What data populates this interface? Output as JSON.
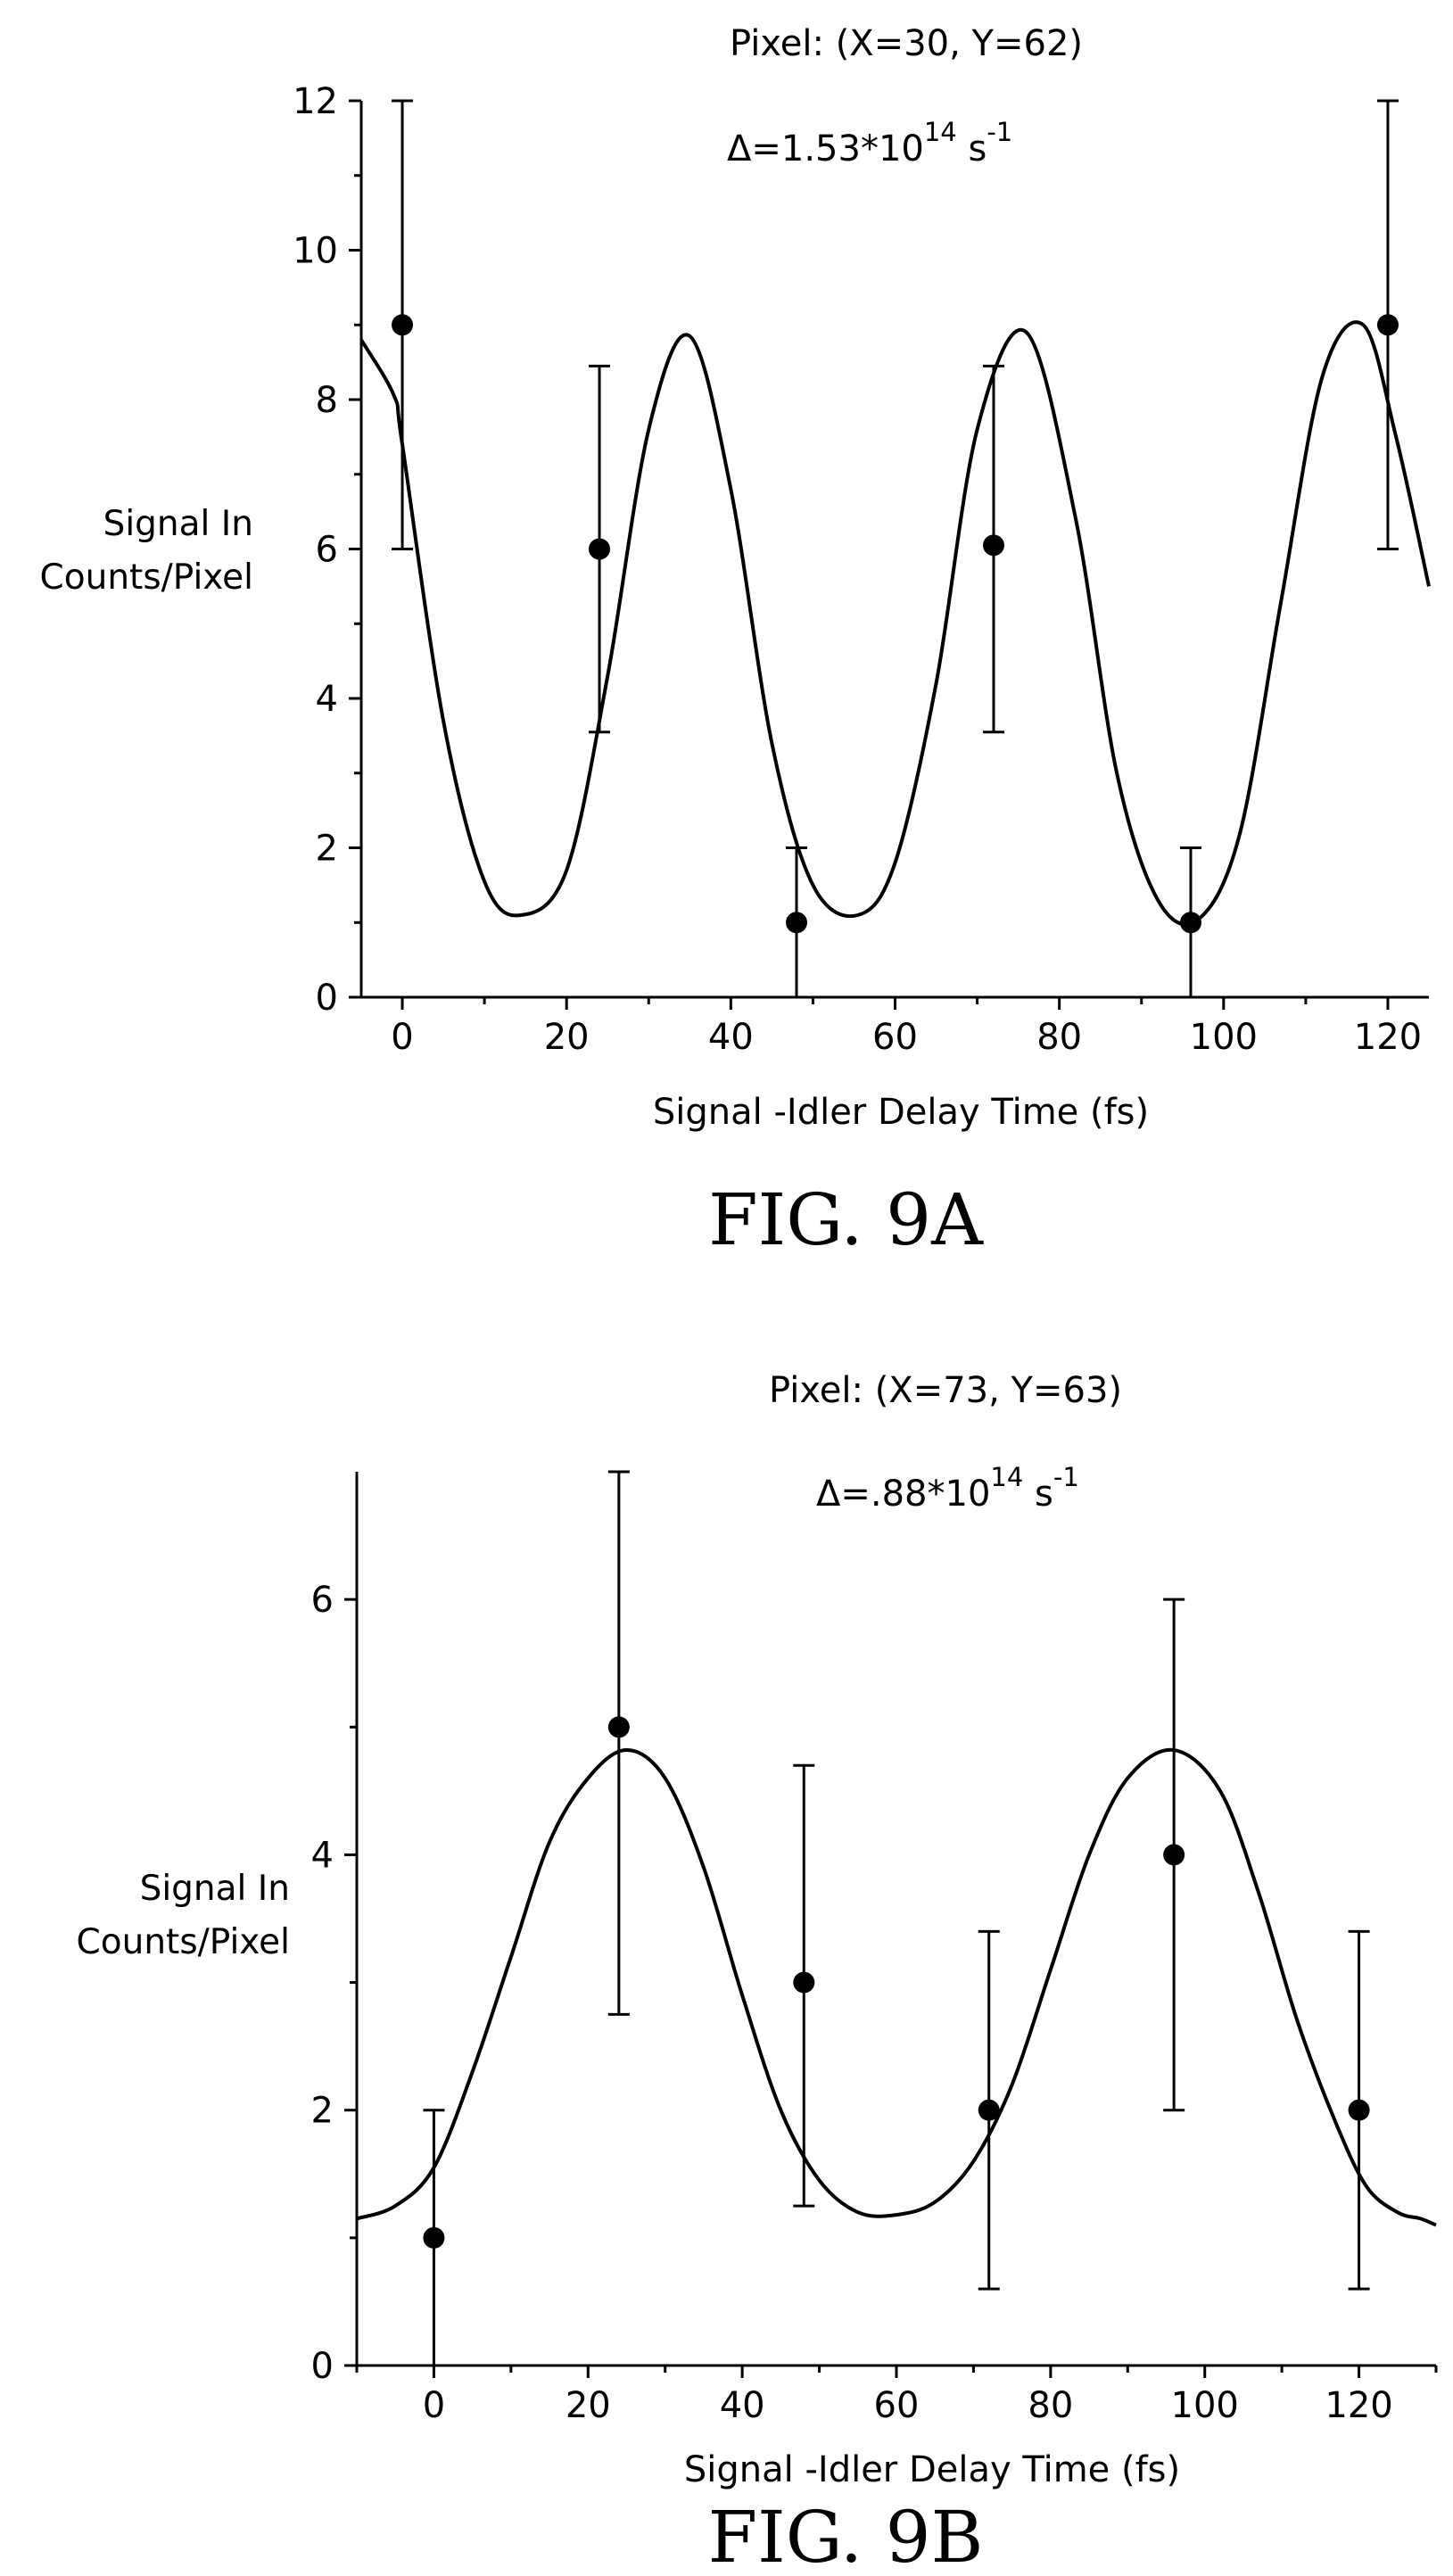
{
  "chart_data": [
    {
      "type": "scatter",
      "figure_label": "FIG. 9A",
      "annotations": {
        "pixel": "Pixel: (X=30, Y=62)",
        "delta_base": "Δ=1.53*10",
        "delta_exp": "14",
        "delta_unit": " s",
        "delta_unit_exp": "-1"
      },
      "xlabel": "Signal -Idler Delay Time (fs)",
      "ylabel": [
        "Signal In",
        "Counts/Pixel"
      ],
      "xlim": [
        -5,
        125
      ],
      "ylim": [
        0,
        12
      ],
      "xticks": [
        0,
        20,
        40,
        60,
        80,
        100,
        120
      ],
      "yticks": [
        0,
        2,
        4,
        6,
        8,
        10,
        12
      ],
      "points": [
        {
          "x": 0,
          "y": 9,
          "err_low": 6,
          "err_high": 12
        },
        {
          "x": 24,
          "y": 6,
          "err_low": 3.55,
          "err_high": 8.45
        },
        {
          "x": 48,
          "y": 1,
          "err_low": 0,
          "err_high": 2
        },
        {
          "x": 72,
          "y": 6.05,
          "err_low": 3.55,
          "err_high": 8.45
        },
        {
          "x": 96,
          "y": 1,
          "err_low": 0,
          "err_high": 2
        },
        {
          "x": 120,
          "y": 9,
          "err_low": 6,
          "err_high": 12
        }
      ],
      "fit": {
        "x": [
          -5,
          -1,
          0,
          5,
          10,
          14.5,
          20,
          25,
          30,
          35,
          40,
          45,
          50,
          55.5,
          60,
          65,
          70,
          76,
          82,
          87,
          92,
          97,
          102,
          107,
          112,
          117,
          121,
          125
        ],
        "y": [
          8.8,
          8.05,
          7.4,
          3.7,
          1.55,
          1.1,
          1.7,
          4.3,
          7.6,
          8.85,
          6.8,
          3.4,
          1.5,
          1.1,
          1.8,
          4.2,
          7.6,
          8.9,
          6.4,
          3.0,
          1.3,
          1.05,
          2.2,
          5.3,
          8.3,
          9.0,
          7.5,
          5.5
        ]
      }
    },
    {
      "type": "scatter",
      "figure_label": "FIG. 9B",
      "annotations": {
        "pixel": "Pixel: (X=73, Y=63)",
        "delta_base": "Δ=.88*10",
        "delta_exp": "14",
        "delta_unit": " s",
        "delta_unit_exp": "-1"
      },
      "xlabel": "Signal -Idler Delay Time (fs)",
      "ylabel": [
        "Signal In",
        "Counts/Pixel"
      ],
      "xlim": [
        -10,
        130
      ],
      "ylim": [
        0,
        7
      ],
      "xticks": [
        0,
        20,
        40,
        60,
        80,
        100,
        120
      ],
      "yticks": [
        0,
        2,
        4,
        6
      ],
      "points": [
        {
          "x": 0,
          "y": 1,
          "err_low": 0,
          "err_high": 2
        },
        {
          "x": 24,
          "y": 5,
          "err_low": 2.75,
          "err_high": 7
        },
        {
          "x": 48,
          "y": 3,
          "err_low": 1.25,
          "err_high": 4.7
        },
        {
          "x": 72,
          "y": 2,
          "err_low": 0.6,
          "err_high": 3.4
        },
        {
          "x": 96,
          "y": 4,
          "err_low": 2,
          "err_high": 6
        },
        {
          "x": 120,
          "y": 2,
          "err_low": 0.6,
          "err_high": 3.4
        }
      ],
      "fit": {
        "x": [
          -10,
          -5,
          0,
          5,
          10,
          15,
          20,
          25,
          30,
          35,
          40,
          45,
          50,
          55,
          60,
          65,
          70,
          75,
          80,
          85,
          90,
          96,
          102,
          107,
          112,
          117,
          121,
          125,
          128,
          130
        ],
        "y": [
          1.15,
          1.25,
          1.55,
          2.3,
          3.2,
          4.1,
          4.6,
          4.82,
          4.6,
          3.9,
          2.9,
          2.0,
          1.45,
          1.2,
          1.18,
          1.28,
          1.6,
          2.2,
          3.1,
          4.0,
          4.6,
          4.82,
          4.5,
          3.7,
          2.7,
          1.9,
          1.4,
          1.2,
          1.15,
          1.1
        ]
      }
    }
  ]
}
